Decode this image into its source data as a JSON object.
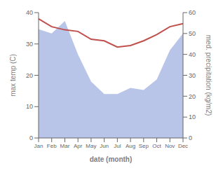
{
  "chart_data": {
    "type": "line",
    "xlabel": "date (month)",
    "ylabel": "max temp (C)",
    "y2label": "med. precipitation (kg/m2)",
    "categories": [
      "Jan",
      "Feb",
      "Mar",
      "Apr",
      "May",
      "Jun",
      "Jul",
      "Aug",
      "Sep",
      "Oct",
      "Nov",
      "Dec"
    ],
    "series": [
      {
        "type": "area",
        "axis": "y2",
        "color": "#b8c4e8",
        "values": [
          52,
          50,
          56,
          40,
          27,
          21,
          21,
          24,
          23,
          28,
          42,
          50
        ]
      },
      {
        "type": "line",
        "color": "#c0504d",
        "values": [
          38.0,
          35.5,
          34.5,
          34.0,
          31.5,
          31.0,
          29.0,
          29.5,
          31.0,
          33.0,
          35.5,
          36.5
        ]
      }
    ],
    "ylim": [
      0,
      40
    ],
    "yticks": [
      0,
      10,
      20,
      30,
      40
    ],
    "y2lim": [
      0,
      60
    ],
    "y2ticks": [
      0,
      10,
      20,
      30,
      40,
      50,
      60
    ],
    "grid": false
  }
}
